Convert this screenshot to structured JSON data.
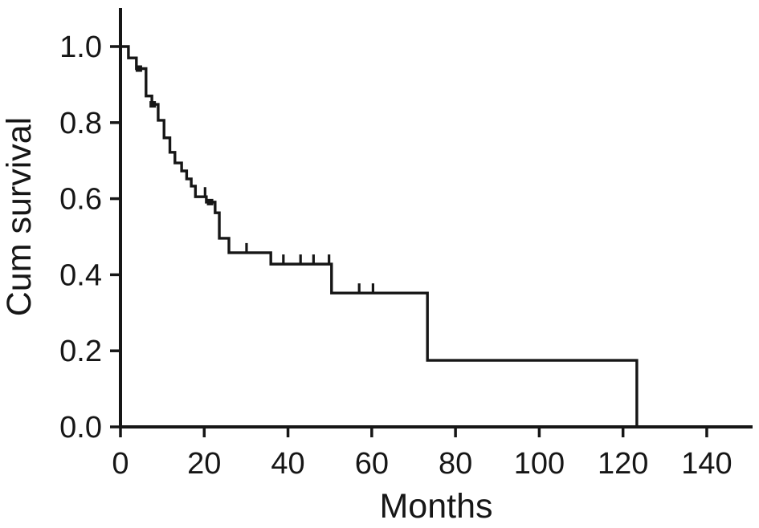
{
  "figure": {
    "background_color": "#ffffff",
    "ink_color": "#161616"
  },
  "chart_data": {
    "type": "line",
    "subtype": "kaplan-meier-step-function",
    "title": "",
    "xlabel": "Months",
    "ylabel": "Cum survival",
    "xlim": [
      0,
      151
    ],
    "ylim": [
      0,
      1.1
    ],
    "grid": false,
    "legend": null,
    "x_ticks": [
      0,
      20,
      40,
      60,
      80,
      100,
      120,
      140
    ],
    "y_tick_values": [
      0.0,
      0.2,
      0.4,
      0.6,
      0.8,
      1.0
    ],
    "y_tick_labels": [
      "0.0",
      "0.2",
      "0.4",
      "0.6",
      "0.8",
      "1.0"
    ],
    "line_color": "#161616",
    "series": [
      {
        "name": "Cum survival",
        "draw": "step-after",
        "points": [
          [
            0,
            1.0
          ],
          [
            1.9,
            0.97
          ],
          [
            3.8,
            0.942
          ],
          [
            6.1,
            0.87
          ],
          [
            7.5,
            0.848
          ],
          [
            9.0,
            0.806
          ],
          [
            10.4,
            0.76
          ],
          [
            11.8,
            0.722
          ],
          [
            13.0,
            0.694
          ],
          [
            14.6,
            0.673
          ],
          [
            15.8,
            0.652
          ],
          [
            16.9,
            0.633
          ],
          [
            17.9,
            0.605
          ],
          [
            20.5,
            0.591
          ],
          [
            22.6,
            0.563
          ],
          [
            23.6,
            0.496
          ],
          [
            25.9,
            0.458
          ],
          [
            35.9,
            0.428
          ],
          [
            50.4,
            0.352
          ],
          [
            73.3,
            0.175
          ],
          [
            123.3,
            0.0
          ]
        ]
      }
    ],
    "censor_marks": [
      {
        "t": 4.4,
        "s": 0.942,
        "style": "square"
      },
      {
        "t": 7.7,
        "s": 0.848,
        "style": "square"
      },
      {
        "t": 20.2,
        "s": 0.605,
        "style": "tick"
      },
      {
        "t": 21.4,
        "s": 0.591,
        "style": "square"
      },
      {
        "t": 30.1,
        "s": 0.458,
        "style": "tick"
      },
      {
        "t": 38.9,
        "s": 0.428,
        "style": "tick"
      },
      {
        "t": 43.0,
        "s": 0.428,
        "style": "tick"
      },
      {
        "t": 46.1,
        "s": 0.428,
        "style": "tick"
      },
      {
        "t": 49.8,
        "s": 0.428,
        "style": "tick"
      },
      {
        "t": 57.0,
        "s": 0.352,
        "style": "tick"
      },
      {
        "t": 60.3,
        "s": 0.352,
        "style": "tick"
      }
    ]
  }
}
